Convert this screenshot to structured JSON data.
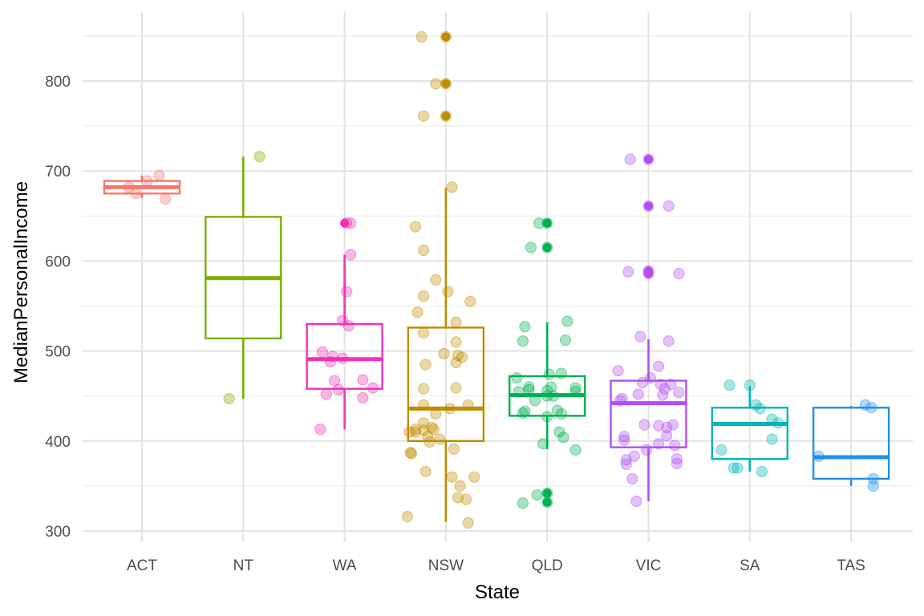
{
  "chart_data": {
    "type": "box",
    "title": "",
    "xlabel": "State",
    "ylabel": "MedianPersonalIncome",
    "ylim": [
      290,
      880
    ],
    "yticks": [
      300,
      400,
      500,
      600,
      700,
      800
    ],
    "grid": true,
    "legend": "none",
    "categories": [
      "ACT",
      "NT",
      "WA",
      "NSW",
      "QLD",
      "VIC",
      "SA",
      "TAS"
    ],
    "series": [
      {
        "category": "ACT",
        "color": "#F8766D",
        "box": {
          "lower_whisker": 670,
          "q1": 675,
          "median": 682,
          "q3": 689,
          "upper_whisker": 695
        },
        "outliers": [],
        "points": [
          [
            -0.13,
            682
          ],
          [
            -0.06,
            675
          ],
          [
            0.05,
            689
          ],
          [
            0.17,
            695
          ],
          [
            0.23,
            669
          ]
        ]
      },
      {
        "category": "NT",
        "color": "#7CAE00",
        "box": {
          "lower_whisker": 447,
          "q1": 514,
          "median": 581,
          "q3": 649,
          "upper_whisker": 716
        },
        "outliers": [],
        "points": [
          [
            -0.14,
            447
          ],
          [
            0.16,
            716
          ]
        ]
      },
      {
        "category": "WA",
        "color": "#F032B7",
        "box": {
          "lower_whisker": 413,
          "q1": 458,
          "median": 491,
          "q3": 530,
          "upper_whisker": 607
        },
        "outliers": [
          642
        ],
        "points": [
          [
            -0.24,
            413
          ],
          [
            -0.22,
            499
          ],
          [
            -0.18,
            452
          ],
          [
            -0.14,
            488
          ],
          [
            -0.12,
            494
          ],
          [
            -0.1,
            467
          ],
          [
            -0.06,
            457
          ],
          [
            -0.02,
            534
          ],
          [
            -0.02,
            492
          ],
          [
            0.02,
            566
          ],
          [
            0.02,
            642
          ],
          [
            0.04,
            528
          ],
          [
            0.06,
            607
          ],
          [
            0.06,
            642
          ],
          [
            0.18,
            448
          ],
          [
            0.18,
            468
          ],
          [
            0.28,
            459
          ]
        ]
      },
      {
        "category": "NSW",
        "color": "#C08B00",
        "box": {
          "lower_whisker": 310,
          "q1": 400,
          "median": 436,
          "q3": 526,
          "upper_whisker": 681
        },
        "outliers": [
          761,
          797,
          849
        ],
        "points": [
          [
            -0.38,
            316
          ],
          [
            -0.36,
            410
          ],
          [
            -0.35,
            387
          ],
          [
            -0.34,
            386
          ],
          [
            -0.3,
            410
          ],
          [
            -0.3,
            413
          ],
          [
            -0.3,
            638
          ],
          [
            -0.28,
            543
          ],
          [
            -0.24,
            849
          ],
          [
            -0.22,
            761
          ],
          [
            -0.22,
            612
          ],
          [
            -0.22,
            561
          ],
          [
            -0.22,
            520
          ],
          [
            -0.22,
            458
          ],
          [
            -0.22,
            440
          ],
          [
            -0.22,
            420
          ],
          [
            -0.22,
            412
          ],
          [
            -0.2,
            485
          ],
          [
            -0.2,
            366
          ],
          [
            -0.18,
            405
          ],
          [
            -0.16,
            399
          ],
          [
            -0.14,
            415
          ],
          [
            -0.12,
            413
          ],
          [
            -0.1,
            430
          ],
          [
            -0.1,
            797
          ],
          [
            -0.1,
            579
          ],
          [
            -0.06,
            402
          ],
          [
            -0.02,
            497
          ],
          [
            0.02,
            566
          ],
          [
            0.04,
            436
          ],
          [
            0.06,
            682
          ],
          [
            0.06,
            360
          ],
          [
            0.08,
            391
          ],
          [
            0.1,
            532
          ],
          [
            0.1,
            510
          ],
          [
            0.1,
            487
          ],
          [
            0.1,
            459
          ],
          [
            0.12,
            337
          ],
          [
            0.12,
            495
          ],
          [
            0.14,
            350
          ],
          [
            0.16,
            493
          ],
          [
            0.2,
            335
          ],
          [
            0.22,
            309
          ],
          [
            0.22,
            440
          ],
          [
            0.24,
            555
          ],
          [
            0.28,
            360
          ],
          [
            0.0,
            849
          ],
          [
            0.0,
            797
          ],
          [
            0.0,
            761
          ]
        ]
      },
      {
        "category": "QLD",
        "color": "#00B050",
        "box": {
          "lower_whisker": 391,
          "q1": 428,
          "median": 451,
          "q3": 472,
          "upper_whisker": 532
        },
        "outliers": [
          642,
          615,
          342,
          332
        ],
        "points": [
          [
            -0.3,
            470
          ],
          [
            -0.28,
            455
          ],
          [
            -0.24,
            431
          ],
          [
            -0.24,
            511
          ],
          [
            -0.22,
            527
          ],
          [
            -0.22,
            433
          ],
          [
            -0.18,
            457
          ],
          [
            -0.18,
            460
          ],
          [
            -0.16,
            615
          ],
          [
            -0.12,
            445
          ],
          [
            -0.08,
            642
          ],
          [
            -0.1,
            340
          ],
          [
            -0.24,
            331
          ],
          [
            -0.04,
            397
          ],
          [
            0.0,
            456
          ],
          [
            0.0,
            427
          ],
          [
            0.0,
            450
          ],
          [
            0.02,
            474
          ],
          [
            0.04,
            460
          ],
          [
            0.06,
            450
          ],
          [
            0.1,
            434
          ],
          [
            0.12,
            410
          ],
          [
            0.14,
            430
          ],
          [
            0.14,
            475
          ],
          [
            0.16,
            404
          ],
          [
            0.18,
            512
          ],
          [
            0.2,
            533
          ],
          [
            0.28,
            455
          ],
          [
            0.28,
            459
          ],
          [
            0.28,
            390
          ],
          [
            0.0,
            642
          ],
          [
            0.0,
            615
          ],
          [
            0.0,
            342
          ],
          [
            0.0,
            332
          ]
        ]
      },
      {
        "category": "VIC",
        "color": "#B34EF2",
        "box": {
          "lower_whisker": 333,
          "q1": 393,
          "median": 442,
          "q3": 467,
          "upper_whisker": 513
        },
        "outliers": [
          713,
          661,
          589,
          586
        ],
        "points": [
          [
            -0.3,
            478
          ],
          [
            -0.28,
            445
          ],
          [
            -0.26,
            447
          ],
          [
            -0.24,
            405
          ],
          [
            -0.24,
            401
          ],
          [
            -0.22,
            379
          ],
          [
            -0.22,
            374
          ],
          [
            -0.18,
            713
          ],
          [
            -0.2,
            588
          ],
          [
            -0.16,
            358
          ],
          [
            -0.14,
            383
          ],
          [
            -0.12,
            333
          ],
          [
            -0.1,
            452
          ],
          [
            -0.08,
            516
          ],
          [
            -0.06,
            465
          ],
          [
            -0.02,
            390
          ],
          [
            -0.04,
            418
          ],
          [
            0.02,
            470
          ],
          [
            0.1,
            397
          ],
          [
            0.1,
            417
          ],
          [
            0.1,
            483
          ],
          [
            0.12,
            463
          ],
          [
            0.14,
            451
          ],
          [
            0.16,
            458
          ],
          [
            0.18,
            415
          ],
          [
            0.18,
            406
          ],
          [
            0.2,
            661
          ],
          [
            0.2,
            511
          ],
          [
            0.22,
            463
          ],
          [
            0.24,
            418
          ],
          [
            0.26,
            395
          ],
          [
            0.28,
            380
          ],
          [
            0.28,
            375
          ],
          [
            0.3,
            454
          ],
          [
            0.3,
            586
          ],
          [
            0.0,
            713
          ],
          [
            0.0,
            661
          ],
          [
            0.0,
            589
          ],
          [
            0.0,
            586
          ]
        ]
      },
      {
        "category": "SA",
        "color": "#00B5B8",
        "box": {
          "lower_whisker": 366,
          "q1": 380,
          "median": 419,
          "q3": 437,
          "upper_whisker": 461
        },
        "outliers": [],
        "points": [
          [
            -0.28,
            390
          ],
          [
            -0.2,
            462
          ],
          [
            -0.16,
            370
          ],
          [
            -0.12,
            370
          ],
          [
            0.0,
            462
          ],
          [
            0.06,
            440
          ],
          [
            0.1,
            436
          ],
          [
            0.12,
            366
          ],
          [
            0.22,
            424
          ],
          [
            0.22,
            402
          ],
          [
            0.28,
            420
          ]
        ]
      },
      {
        "category": "TAS",
        "color": "#1E90F0",
        "box": {
          "lower_whisker": 350,
          "q1": 358,
          "median": 382,
          "q3": 437,
          "upper_whisker": 439
        },
        "outliers": [],
        "points": [
          [
            -0.32,
            383
          ],
          [
            0.14,
            440
          ],
          [
            0.2,
            437
          ],
          [
            0.22,
            358
          ],
          [
            0.22,
            350
          ]
        ]
      }
    ]
  }
}
